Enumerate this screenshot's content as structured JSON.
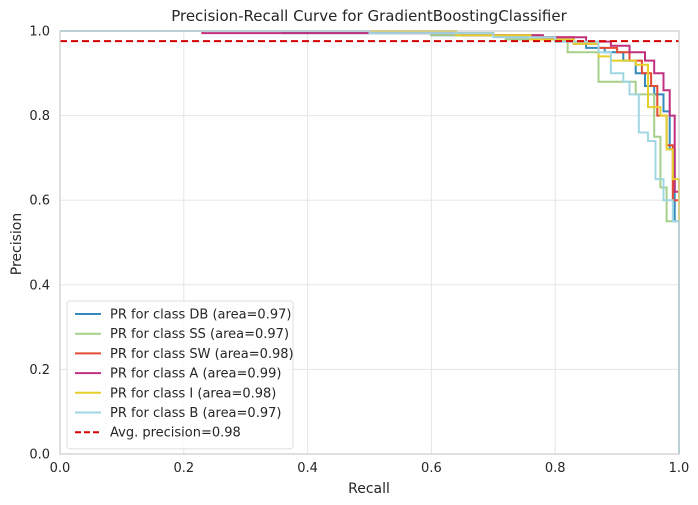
{
  "chart_data": {
    "type": "line",
    "title": "Precision-Recall Curve for GradientBoostingClassifier",
    "xlabel": "Recall",
    "ylabel": "Precision",
    "xlim": [
      0,
      1
    ],
    "ylim": [
      0,
      1
    ],
    "xticks": [
      "0.0",
      "0.2",
      "0.4",
      "0.6",
      "0.8",
      "1.0"
    ],
    "yticks": [
      "0.0",
      "0.2",
      "0.4",
      "0.6",
      "0.8",
      "1.0"
    ],
    "grid": true,
    "legend_position": "lower-left",
    "series": [
      {
        "name": "PR for class DB (area=0.97)",
        "color": "#348abd",
        "points": [
          [
            0.0,
            1.0
          ],
          [
            0.36,
            1.0
          ],
          [
            0.36,
            0.995
          ],
          [
            0.6,
            0.995
          ],
          [
            0.6,
            0.99
          ],
          [
            0.72,
            0.99
          ],
          [
            0.72,
            0.985
          ],
          [
            0.8,
            0.985
          ],
          [
            0.8,
            0.975
          ],
          [
            0.85,
            0.975
          ],
          [
            0.85,
            0.96
          ],
          [
            0.88,
            0.96
          ],
          [
            0.88,
            0.95
          ],
          [
            0.91,
            0.95
          ],
          [
            0.91,
            0.93
          ],
          [
            0.93,
            0.93
          ],
          [
            0.93,
            0.9
          ],
          [
            0.945,
            0.9
          ],
          [
            0.945,
            0.87
          ],
          [
            0.96,
            0.87
          ],
          [
            0.96,
            0.85
          ],
          [
            0.975,
            0.85
          ],
          [
            0.975,
            0.81
          ],
          [
            0.985,
            0.81
          ],
          [
            0.985,
            0.72
          ],
          [
            0.993,
            0.72
          ],
          [
            0.993,
            0.55
          ],
          [
            1.0,
            0.55
          ],
          [
            1.0,
            0.05
          ]
        ]
      },
      {
        "name": "PR for class SS (area=0.97)",
        "color": "#a6cf8a",
        "points": [
          [
            0.0,
            1.0
          ],
          [
            0.6,
            1.0
          ],
          [
            0.6,
            0.99
          ],
          [
            0.72,
            0.99
          ],
          [
            0.72,
            0.98
          ],
          [
            0.82,
            0.98
          ],
          [
            0.82,
            0.95
          ],
          [
            0.87,
            0.95
          ],
          [
            0.87,
            0.88
          ],
          [
            0.9,
            0.88
          ],
          [
            0.9,
            0.88
          ],
          [
            0.93,
            0.88
          ],
          [
            0.93,
            0.85
          ],
          [
            0.96,
            0.85
          ],
          [
            0.96,
            0.75
          ],
          [
            0.97,
            0.75
          ],
          [
            0.97,
            0.63
          ],
          [
            0.98,
            0.63
          ],
          [
            0.98,
            0.55
          ],
          [
            1.0,
            0.55
          ],
          [
            1.0,
            0.01
          ]
        ]
      },
      {
        "name": "PR for class SW (area=0.98)",
        "color": "#e24a33",
        "points": [
          [
            0.0,
            1.0
          ],
          [
            0.55,
            1.0
          ],
          [
            0.55,
            0.995
          ],
          [
            0.7,
            0.995
          ],
          [
            0.7,
            0.99
          ],
          [
            0.78,
            0.99
          ],
          [
            0.78,
            0.985
          ],
          [
            0.83,
            0.985
          ],
          [
            0.83,
            0.97
          ],
          [
            0.87,
            0.97
          ],
          [
            0.87,
            0.96
          ],
          [
            0.9,
            0.96
          ],
          [
            0.9,
            0.95
          ],
          [
            0.92,
            0.95
          ],
          [
            0.92,
            0.93
          ],
          [
            0.94,
            0.93
          ],
          [
            0.94,
            0.9
          ],
          [
            0.955,
            0.9
          ],
          [
            0.955,
            0.87
          ],
          [
            0.965,
            0.87
          ],
          [
            0.965,
            0.8
          ],
          [
            0.98,
            0.8
          ],
          [
            0.98,
            0.73
          ],
          [
            0.99,
            0.73
          ],
          [
            0.99,
            0.6
          ],
          [
            1.0,
            0.6
          ],
          [
            1.0,
            0.09
          ]
        ]
      },
      {
        "name": "PR for class A (area=0.99)",
        "color": "#c0307f",
        "points": [
          [
            0.0,
            1.0
          ],
          [
            0.23,
            1.0
          ],
          [
            0.23,
            0.995
          ],
          [
            0.65,
            0.995
          ],
          [
            0.65,
            0.99
          ],
          [
            0.78,
            0.99
          ],
          [
            0.78,
            0.985
          ],
          [
            0.85,
            0.985
          ],
          [
            0.85,
            0.975
          ],
          [
            0.89,
            0.975
          ],
          [
            0.89,
            0.965
          ],
          [
            0.92,
            0.965
          ],
          [
            0.92,
            0.95
          ],
          [
            0.945,
            0.95
          ],
          [
            0.945,
            0.93
          ],
          [
            0.96,
            0.93
          ],
          [
            0.96,
            0.9
          ],
          [
            0.975,
            0.9
          ],
          [
            0.975,
            0.86
          ],
          [
            0.985,
            0.86
          ],
          [
            0.985,
            0.8
          ],
          [
            0.993,
            0.8
          ],
          [
            0.993,
            0.62
          ],
          [
            1.0,
            0.62
          ],
          [
            1.0,
            0.3
          ]
        ]
      },
      {
        "name": "PR for class I (area=0.98)",
        "color": "#e5cf2b",
        "points": [
          [
            0.0,
            1.0
          ],
          [
            0.64,
            1.0
          ],
          [
            0.64,
            0.99
          ],
          [
            0.76,
            0.99
          ],
          [
            0.76,
            0.98
          ],
          [
            0.83,
            0.98
          ],
          [
            0.83,
            0.97
          ],
          [
            0.87,
            0.97
          ],
          [
            0.87,
            0.94
          ],
          [
            0.89,
            0.94
          ],
          [
            0.89,
            0.93
          ],
          [
            0.93,
            0.93
          ],
          [
            0.93,
            0.92
          ],
          [
            0.95,
            0.92
          ],
          [
            0.95,
            0.82
          ],
          [
            0.97,
            0.82
          ],
          [
            0.97,
            0.8
          ],
          [
            0.98,
            0.8
          ],
          [
            0.98,
            0.72
          ],
          [
            0.99,
            0.72
          ],
          [
            0.99,
            0.65
          ],
          [
            1.0,
            0.65
          ],
          [
            1.0,
            0.15
          ]
        ]
      },
      {
        "name": "PR for class B (area=0.97)",
        "color": "#a1d7e3",
        "points": [
          [
            0.0,
            1.0
          ],
          [
            0.5,
            1.0
          ],
          [
            0.5,
            0.995
          ],
          [
            0.7,
            0.995
          ],
          [
            0.7,
            0.985
          ],
          [
            0.8,
            0.985
          ],
          [
            0.8,
            0.975
          ],
          [
            0.87,
            0.975
          ],
          [
            0.87,
            0.95
          ],
          [
            0.89,
            0.95
          ],
          [
            0.89,
            0.9
          ],
          [
            0.91,
            0.9
          ],
          [
            0.91,
            0.88
          ],
          [
            0.92,
            0.88
          ],
          [
            0.92,
            0.85
          ],
          [
            0.935,
            0.85
          ],
          [
            0.935,
            0.76
          ],
          [
            0.95,
            0.76
          ],
          [
            0.95,
            0.74
          ],
          [
            0.962,
            0.74
          ],
          [
            0.962,
            0.65
          ],
          [
            0.975,
            0.65
          ],
          [
            0.975,
            0.6
          ],
          [
            0.99,
            0.6
          ],
          [
            0.99,
            0.55
          ],
          [
            1.0,
            0.55
          ],
          [
            1.0,
            0.0
          ]
        ]
      }
    ],
    "avg_precision": {
      "name": "Avg. precision=0.98",
      "value": 0.976,
      "color": "#d40000"
    }
  }
}
